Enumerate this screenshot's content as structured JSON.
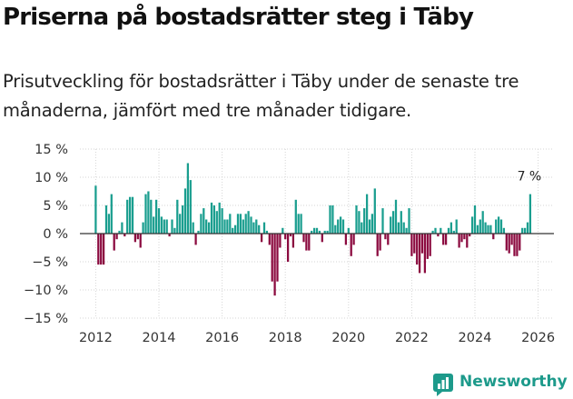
{
  "chart_data": {
    "type": "bar",
    "title": "Priserna på bostadsrätter steg i Täby",
    "subtitle": "Prisutveckling för bostadsrätter i Täby under de senaste tre månaderna, jämfört med tre månader tidigare.",
    "xlabel": "",
    "ylabel": "",
    "unit": "%",
    "ylim": [
      -15,
      15
    ],
    "yticks": [
      15,
      10,
      5,
      0,
      -5,
      -10,
      -15
    ],
    "ytick_labels": [
      "15 %",
      "10 %",
      "5 %",
      "0 %",
      "−5 %",
      "−10 %",
      "−15 %"
    ],
    "xlim": [
      2011.5,
      2026.5
    ],
    "xticks": [
      2012,
      2014,
      2016,
      2018,
      2020,
      2022,
      2024,
      2026
    ],
    "xtick_labels": [
      "2012",
      "2014",
      "2016",
      "2018",
      "2020",
      "2022",
      "2024",
      "2026"
    ],
    "grid": true,
    "start_year": 2012,
    "frequency": "monthly",
    "positive_color": "#1a9e8f",
    "negative_color": "#8b0a3f",
    "values": [
      8.5,
      -5.5,
      -5.5,
      -5.5,
      5.0,
      3.5,
      7.0,
      -3.0,
      -1.0,
      0.5,
      2.0,
      -0.5,
      6.0,
      6.5,
      6.5,
      -1.5,
      -1.0,
      -2.5,
      2.0,
      7.0,
      7.5,
      6.0,
      3.0,
      6.0,
      4.5,
      3.0,
      2.5,
      2.5,
      -0.5,
      2.5,
      1.0,
      6.0,
      3.5,
      5.0,
      8.0,
      12.5,
      9.5,
      2.0,
      -2.0,
      0.5,
      3.5,
      4.5,
      2.5,
      2.0,
      5.5,
      5.0,
      4.0,
      5.5,
      4.5,
      2.5,
      2.5,
      3.5,
      1.0,
      1.5,
      3.5,
      3.5,
      2.5,
      3.5,
      4.0,
      3.0,
      2.0,
      2.5,
      1.5,
      -1.5,
      2.0,
      0.5,
      -2.0,
      -8.5,
      -11.0,
      -8.5,
      -2.5,
      1.0,
      -1.0,
      -5.0,
      -0.5,
      -2.5,
      6.0,
      3.5,
      3.5,
      -1.5,
      -3.0,
      -3.0,
      0.5,
      1.0,
      1.0,
      0.5,
      -1.5,
      0.5,
      0.5,
      5.0,
      5.0,
      1.5,
      2.5,
      3.0,
      2.5,
      -2.0,
      1.0,
      -4.0,
      -2.0,
      5.0,
      4.0,
      2.0,
      4.5,
      7.0,
      2.5,
      3.5,
      8.0,
      -4.0,
      -3.0,
      4.5,
      -1.0,
      -2.0,
      3.0,
      4.0,
      6.0,
      2.0,
      4.0,
      2.0,
      1.0,
      4.5,
      -4.0,
      -3.5,
      -5.5,
      -7.0,
      -3.5,
      -7.0,
      -4.5,
      -4.0,
      0.5,
      1.0,
      -0.5,
      1.0,
      -2.0,
      -2.0,
      1.0,
      2.0,
      0.5,
      2.5,
      -2.5,
      -1.5,
      -1.0,
      -2.5,
      -0.5,
      3.0,
      5.0,
      1.5,
      2.5,
      4.0,
      2.0,
      1.5,
      1.5,
      -1.0,
      2.5,
      3.0,
      2.5,
      1.0,
      -3.0,
      -3.5,
      -2.0,
      -4.0,
      -4.0,
      -3.0,
      1.0,
      1.0,
      2.0,
      7.0
    ],
    "annotations": [
      {
        "label": "7 %",
        "value": 7,
        "position": "last-bar"
      }
    ]
  },
  "branding": {
    "name": "Newsworthy",
    "color": "#1d9a8b",
    "icon": "newsworthy-logo-icon"
  }
}
